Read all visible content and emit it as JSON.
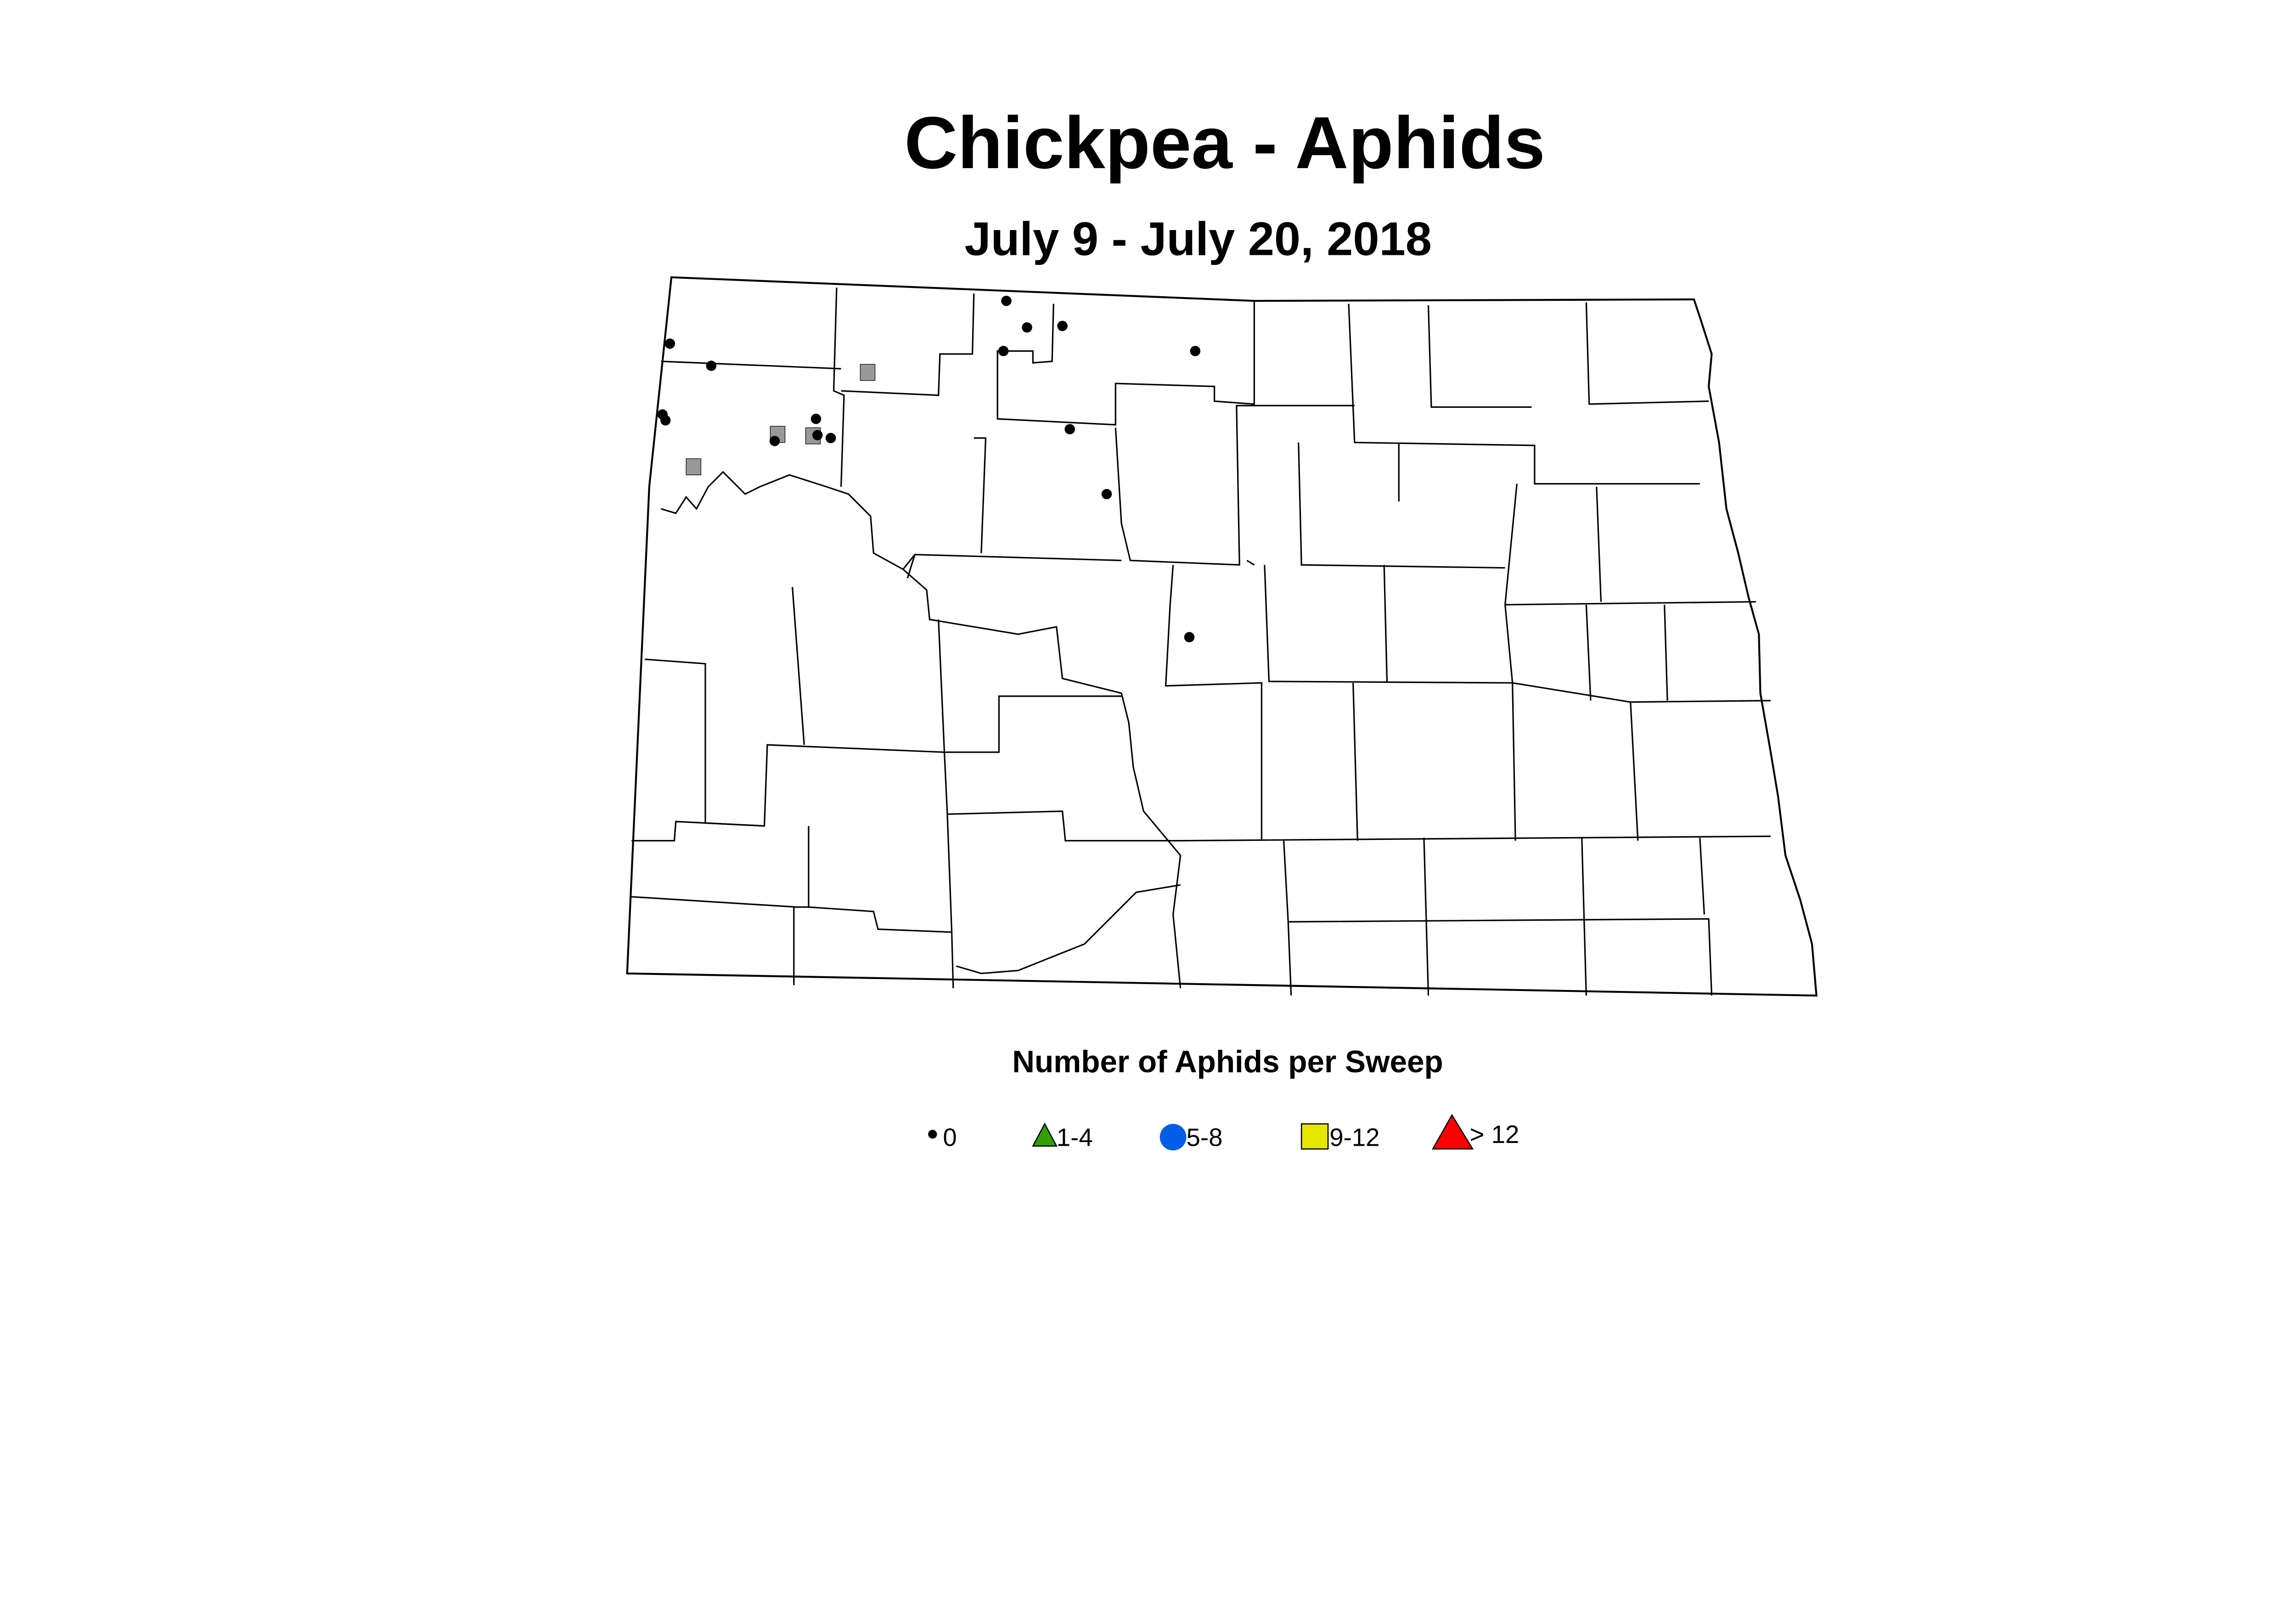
{
  "title": "Chickpea - Aphids",
  "subtitle": "July 9 - July 20, 2018",
  "legend": {
    "title": "Number of Aphids per Sweep",
    "items": [
      {
        "label": "0",
        "symbol": "small-dot",
        "color": "#000000"
      },
      {
        "label": "1-4",
        "symbol": "triangle",
        "color": "#33a000"
      },
      {
        "label": "5-8",
        "symbol": "circle",
        "color": "#005ee6"
      },
      {
        "label": "9-12",
        "symbol": "square",
        "color": "#e6e600"
      },
      {
        "label": "> 12",
        "symbol": "large-triangle",
        "color": "#ff0000"
      }
    ]
  },
  "markers": {
    "zero_color": "#000000",
    "gray_square_color": "#999999"
  }
}
